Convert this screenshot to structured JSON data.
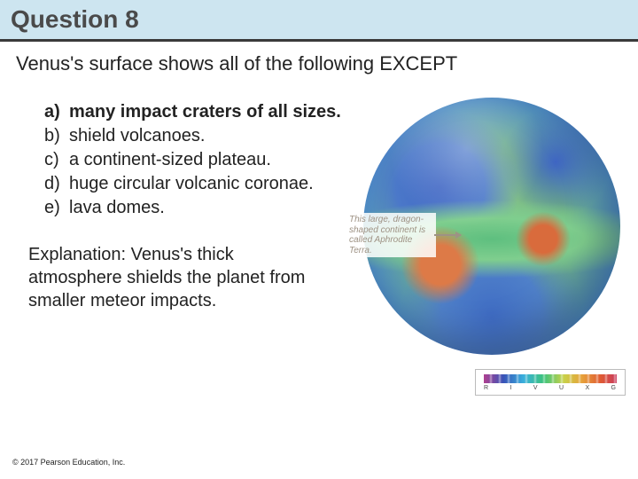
{
  "title": "Question 8",
  "question": "Venus's surface shows all of the following EXCEPT",
  "options": [
    {
      "letter": "a)",
      "text": "many impact craters of all sizes.",
      "correct": true
    },
    {
      "letter": "b)",
      "text": "shield volcanoes.",
      "correct": false
    },
    {
      "letter": "c)",
      "text": "a continent-sized plateau.",
      "correct": false
    },
    {
      "letter": "d)",
      "text": "huge circular volcanic coronae.",
      "correct": false
    },
    {
      "letter": "e)",
      "text": "lava domes.",
      "correct": false
    }
  ],
  "explanation": "Explanation: Venus's thick atmosphere shields the planet from smaller meteor impacts.",
  "annotation": "This large, dragon-shaped continent is called Aphrodite Terra.",
  "legend_letters": [
    "R",
    "I",
    "V",
    "U",
    "X",
    "G"
  ],
  "copyright": "© 2017 Pearson Education, Inc.",
  "colors": {
    "title_bg": "#cde5f0",
    "title_text": "#4a4a4a",
    "underline": "#3a3a3a",
    "body_text": "#222222"
  }
}
